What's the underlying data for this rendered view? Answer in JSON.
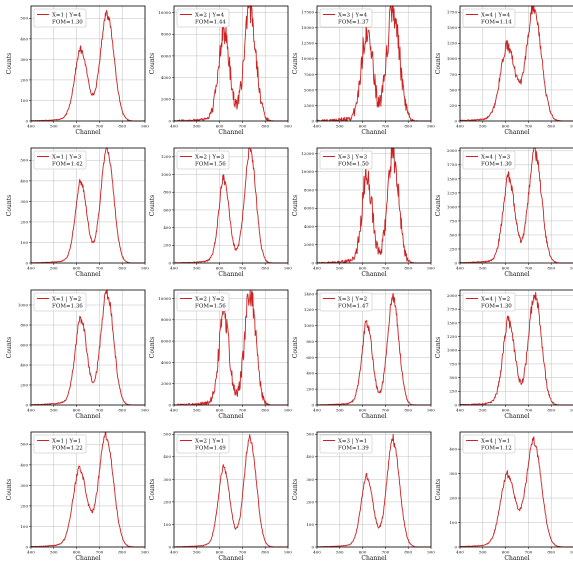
{
  "chart_data": [
    {
      "type": "line",
      "legend": [
        "X=1 | Y=4",
        "FOM=1.30"
      ],
      "xlabel": "Channel",
      "ylabel": "Counts",
      "xlim": [
        400,
        900
      ],
      "xticks": [
        400,
        500,
        600,
        700,
        800,
        900
      ],
      "ylim": [
        0,
        560
      ],
      "yticks": [
        0,
        100,
        200,
        300,
        400,
        500
      ],
      "grid": true,
      "legend_position": "upper-left",
      "series": [
        {
          "color": "#cc2222",
          "peaks": [
            {
              "center": 620,
              "height": 330,
              "width": 28
            },
            {
              "center": 735,
              "height": 510,
              "width": 30
            }
          ],
          "tail": 0.1
        }
      ]
    },
    {
      "type": "line",
      "legend": [
        "X=2 | Y=4",
        "FOM=1.44"
      ],
      "xlabel": "Channel",
      "ylabel": "Counts",
      "xlim": [
        400,
        900
      ],
      "xticks": [
        400,
        500,
        600,
        700,
        800,
        900
      ],
      "ylim": [
        0,
        10600
      ],
      "yticks": [
        0,
        2000,
        4000,
        6000,
        8000,
        10000
      ],
      "grid": true,
      "legend_position": "upper-left",
      "series": [
        {
          "color": "#cc2222",
          "peaks": [
            {
              "center": 620,
              "height": 8000,
              "width": 24
            },
            {
              "center": 735,
              "height": 9900,
              "width": 26
            }
          ],
          "tail": 0.12
        }
      ]
    },
    {
      "type": "line",
      "legend": [
        "X=3 | Y=4",
        "FOM=1.37"
      ],
      "xlabel": "Channel",
      "ylabel": "Counts",
      "xlim": [
        400,
        900
      ],
      "xticks": [
        400,
        500,
        600,
        700,
        800,
        900
      ],
      "ylim": [
        0,
        18500
      ],
      "yticks": [
        0,
        2500,
        5000,
        7500,
        10000,
        12500,
        15000,
        17500
      ],
      "grid": true,
      "legend_position": "upper-left",
      "series": [
        {
          "color": "#cc2222",
          "peaks": [
            {
              "center": 620,
              "height": 14300,
              "width": 24
            },
            {
              "center": 735,
              "height": 17400,
              "width": 27
            }
          ],
          "tail": 0.12
        }
      ]
    },
    {
      "type": "line",
      "legend": [
        "X=4 | Y=4",
        "FOM=1.14"
      ],
      "xlabel": "Channel",
      "ylabel": "Counts",
      "xlim": [
        400,
        900
      ],
      "xticks": [
        400,
        500,
        600,
        700,
        800,
        900
      ],
      "ylim": [
        0,
        1850
      ],
      "yticks": [
        0,
        250,
        500,
        750,
        1000,
        1250,
        1500,
        1750
      ],
      "grid": true,
      "legend_position": "upper-left",
      "series": [
        {
          "color": "#cc2222",
          "peaks": [
            {
              "center": 610,
              "height": 1150,
              "width": 32
            },
            {
              "center": 725,
              "height": 1760,
              "width": 32
            }
          ],
          "tail": 0.1
        }
      ]
    },
    {
      "type": "line",
      "legend": [
        "X=1 | Y=3",
        "FOM=1.42"
      ],
      "xlabel": "Channel",
      "ylabel": "Counts",
      "xlim": [
        400,
        900
      ],
      "xticks": [
        400,
        500,
        600,
        700,
        800,
        900
      ],
      "ylim": [
        0,
        560
      ],
      "yticks": [
        0,
        100,
        200,
        300,
        400,
        500
      ],
      "grid": true,
      "legend_position": "upper-left",
      "series": [
        {
          "color": "#cc2222",
          "peaks": [
            {
              "center": 620,
              "height": 380,
              "width": 25
            },
            {
              "center": 735,
              "height": 545,
              "width": 28
            }
          ],
          "tail": 0.1
        }
      ]
    },
    {
      "type": "line",
      "legend": [
        "X=2 | Y=3",
        "FOM=1.56"
      ],
      "xlabel": "Channel",
      "ylabel": "Counts",
      "xlim": [
        400,
        900
      ],
      "xticks": [
        400,
        500,
        600,
        700,
        800,
        900
      ],
      "ylim": [
        0,
        1300
      ],
      "yticks": [
        0,
        200,
        400,
        600,
        800,
        1000,
        1200
      ],
      "grid": true,
      "legend_position": "upper-left",
      "series": [
        {
          "color": "#cc2222",
          "peaks": [
            {
              "center": 620,
              "height": 920,
              "width": 23
            },
            {
              "center": 735,
              "height": 1240,
              "width": 25
            }
          ],
          "tail": 0.1
        }
      ]
    },
    {
      "type": "line",
      "legend": [
        "X=3 | Y=3",
        "FOM=1.50"
      ],
      "xlabel": "Channel",
      "ylabel": "Counts",
      "xlim": [
        400,
        900
      ],
      "xticks": [
        400,
        500,
        600,
        700,
        800,
        900
      ],
      "ylim": [
        0,
        12600
      ],
      "yticks": [
        0,
        2000,
        4000,
        6000,
        8000,
        10000,
        12000
      ],
      "grid": true,
      "legend_position": "upper-left",
      "series": [
        {
          "color": "#cc2222",
          "peaks": [
            {
              "center": 620,
              "height": 9300,
              "width": 22
            },
            {
              "center": 735,
              "height": 11700,
              "width": 24
            }
          ],
          "tail": 0.12
        }
      ]
    },
    {
      "type": "line",
      "legend": [
        "X=4 | Y=3",
        "FOM=1.30"
      ],
      "xlabel": "Channel",
      "ylabel": "Counts",
      "xlim": [
        400,
        900
      ],
      "xticks": [
        400,
        500,
        600,
        700,
        800,
        900
      ],
      "ylim": [
        0,
        2050
      ],
      "yticks": [
        0,
        250,
        500,
        750,
        1000,
        1250,
        1500,
        1750,
        2000
      ],
      "grid": true,
      "legend_position": "upper-left",
      "series": [
        {
          "color": "#cc2222",
          "peaks": [
            {
              "center": 615,
              "height": 1450,
              "width": 26
            },
            {
              "center": 730,
              "height": 1940,
              "width": 28
            }
          ],
          "tail": 0.1
        }
      ]
    },
    {
      "type": "line",
      "legend": [
        "X=1 | Y=2",
        "FOM=1.36"
      ],
      "xlabel": "Channel",
      "ylabel": "Counts",
      "xlim": [
        400,
        900
      ],
      "xticks": [
        400,
        500,
        600,
        700,
        800,
        900
      ],
      "ylim": [
        0,
        1150
      ],
      "yticks": [
        0,
        200,
        400,
        600,
        800,
        1000
      ],
      "grid": true,
      "legend_position": "upper-left",
      "series": [
        {
          "color": "#cc2222",
          "peaks": [
            {
              "center": 620,
              "height": 820,
              "width": 26
            },
            {
              "center": 735,
              "height": 1100,
              "width": 28
            }
          ],
          "tail": 0.12
        }
      ]
    },
    {
      "type": "line",
      "legend": [
        "X=2 | Y=2",
        "FOM=1.56"
      ],
      "xlabel": "Channel",
      "ylabel": "Counts",
      "xlim": [
        400,
        900
      ],
      "xticks": [
        400,
        500,
        600,
        700,
        800,
        900
      ],
      "ylim": [
        0,
        10800
      ],
      "yticks": [
        0,
        2000,
        4000,
        6000,
        8000,
        10000
      ],
      "grid": true,
      "legend_position": "upper-left",
      "series": [
        {
          "color": "#cc2222",
          "peaks": [
            {
              "center": 620,
              "height": 8100,
              "width": 22
            },
            {
              "center": 735,
              "height": 10400,
              "width": 24
            }
          ],
          "tail": 0.12
        }
      ]
    },
    {
      "type": "line",
      "legend": [
        "X=3 | Y=2",
        "FOM=1.47"
      ],
      "xlabel": "Channel",
      "ylabel": "Counts",
      "xlim": [
        400,
        900
      ],
      "xticks": [
        400,
        500,
        600,
        700,
        800,
        900
      ],
      "ylim": [
        0,
        1450
      ],
      "yticks": [
        0,
        200,
        400,
        600,
        800,
        1000,
        1200,
        1400
      ],
      "grid": true,
      "legend_position": "upper-left",
      "series": [
        {
          "color": "#cc2222",
          "peaks": [
            {
              "center": 620,
              "height": 1000,
              "width": 23
            },
            {
              "center": 735,
              "height": 1320,
              "width": 25
            }
          ],
          "tail": 0.1
        }
      ]
    },
    {
      "type": "line",
      "legend": [
        "X=4 | Y=2",
        "FOM=1.30"
      ],
      "xlabel": "Channel",
      "ylabel": "Counts",
      "xlim": [
        400,
        900
      ],
      "xticks": [
        400,
        500,
        600,
        700,
        800,
        900
      ],
      "ylim": [
        0,
        2100
      ],
      "yticks": [
        0,
        250,
        500,
        750,
        1000,
        1250,
        1500,
        1750,
        2000
      ],
      "grid": true,
      "legend_position": "upper-left",
      "series": [
        {
          "color": "#cc2222",
          "peaks": [
            {
              "center": 615,
              "height": 1480,
              "width": 26
            },
            {
              "center": 730,
              "height": 1980,
              "width": 28
            }
          ],
          "tail": 0.1
        }
      ]
    },
    {
      "type": "line",
      "legend": [
        "X=1 | Y=1",
        "FOM=1.22"
      ],
      "xlabel": "Channel",
      "ylabel": "Counts",
      "xlim": [
        400,
        900
      ],
      "xticks": [
        400,
        500,
        600,
        700,
        800,
        900
      ],
      "ylim": [
        0,
        560
      ],
      "yticks": [
        0,
        100,
        200,
        300,
        400,
        500
      ],
      "grid": true,
      "legend_position": "upper-left",
      "series": [
        {
          "color": "#cc2222",
          "peaks": [
            {
              "center": 615,
              "height": 360,
              "width": 30
            },
            {
              "center": 730,
              "height": 530,
              "width": 32
            }
          ],
          "tail": 0.1
        }
      ]
    },
    {
      "type": "line",
      "legend": [
        "X=2 | Y=1",
        "FOM=1.49"
      ],
      "xlabel": "Channel",
      "ylabel": "Counts",
      "xlim": [
        400,
        900
      ],
      "xticks": [
        400,
        500,
        600,
        700,
        800,
        900
      ],
      "ylim": [
        0,
        510
      ],
      "yticks": [
        0,
        100,
        200,
        300,
        400,
        500
      ],
      "grid": true,
      "legend_position": "upper-left",
      "series": [
        {
          "color": "#cc2222",
          "peaks": [
            {
              "center": 620,
              "height": 340,
              "width": 25
            },
            {
              "center": 735,
              "height": 470,
              "width": 27
            }
          ],
          "tail": 0.1
        }
      ]
    },
    {
      "type": "line",
      "legend": [
        "X=3 | Y=1",
        "FOM=1.39"
      ],
      "xlabel": "Channel",
      "ylabel": "Counts",
      "xlim": [
        400,
        900
      ],
      "xticks": [
        400,
        500,
        600,
        700,
        800,
        900
      ],
      "ylim": [
        0,
        510
      ],
      "yticks": [
        0,
        100,
        200,
        300,
        400,
        500
      ],
      "grid": true,
      "legend_position": "upper-left",
      "series": [
        {
          "color": "#cc2222",
          "peaks": [
            {
              "center": 620,
              "height": 300,
              "width": 26
            },
            {
              "center": 735,
              "height": 460,
              "width": 28
            }
          ],
          "tail": 0.1
        }
      ]
    },
    {
      "type": "line",
      "legend": [
        "X=4 | Y=1",
        "FOM=1.12"
      ],
      "xlabel": "Channel",
      "ylabel": "Counts",
      "xlim": [
        400,
        900
      ],
      "xticks": [
        400,
        500,
        600,
        700,
        800,
        900
      ],
      "ylim": [
        0,
        470
      ],
      "yticks": [
        0,
        100,
        200,
        300,
        400
      ],
      "grid": true,
      "legend_position": "upper-left",
      "series": [
        {
          "color": "#cc2222",
          "peaks": [
            {
              "center": 610,
              "height": 280,
              "width": 32
            },
            {
              "center": 725,
              "height": 420,
              "width": 33
            }
          ],
          "tail": 0.1
        }
      ]
    }
  ]
}
